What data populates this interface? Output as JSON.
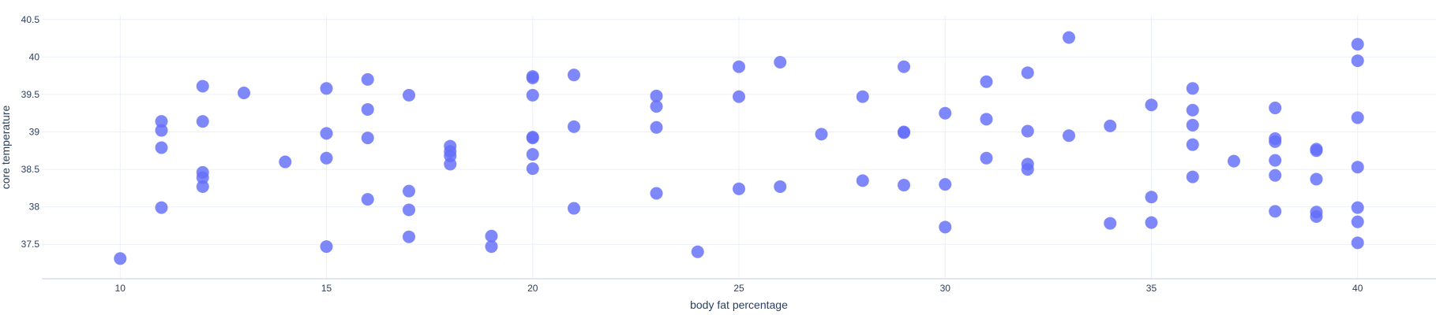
{
  "chart_data": {
    "type": "scatter",
    "title": "",
    "xlabel": "body fat percentage",
    "ylabel": "core temperature",
    "xlim": [
      8.1,
      41.9
    ],
    "ylim": [
      37.04,
      40.55
    ],
    "xticks": [
      10,
      15,
      20,
      25,
      30,
      35,
      40
    ],
    "yticks": [
      37.5,
      38,
      38.5,
      39,
      39.5,
      40,
      40.5
    ],
    "ytick_labels": [
      "37.5",
      "38",
      "38.5",
      "39",
      "39.5",
      "40",
      "40.5"
    ],
    "grid": true,
    "legend": "none",
    "marker_color": "#636efa",
    "points": [
      {
        "x": 10,
        "y": 37.31
      },
      {
        "x": 11,
        "y": 37.99
      },
      {
        "x": 11,
        "y": 38.79
      },
      {
        "x": 11,
        "y": 39.02
      },
      {
        "x": 11,
        "y": 39.14
      },
      {
        "x": 12,
        "y": 38.27
      },
      {
        "x": 12,
        "y": 38.39
      },
      {
        "x": 12,
        "y": 38.46
      },
      {
        "x": 12,
        "y": 39.14
      },
      {
        "x": 12,
        "y": 39.61
      },
      {
        "x": 13,
        "y": 39.52
      },
      {
        "x": 14,
        "y": 38.6
      },
      {
        "x": 15,
        "y": 37.47
      },
      {
        "x": 15,
        "y": 38.65
      },
      {
        "x": 15,
        "y": 38.98
      },
      {
        "x": 15,
        "y": 39.58
      },
      {
        "x": 16,
        "y": 38.1
      },
      {
        "x": 16,
        "y": 38.92
      },
      {
        "x": 16,
        "y": 39.3
      },
      {
        "x": 16,
        "y": 39.7
      },
      {
        "x": 17,
        "y": 37.6
      },
      {
        "x": 17,
        "y": 37.96
      },
      {
        "x": 17,
        "y": 38.21
      },
      {
        "x": 17,
        "y": 39.49
      },
      {
        "x": 18,
        "y": 38.57
      },
      {
        "x": 18,
        "y": 38.68
      },
      {
        "x": 18,
        "y": 38.74
      },
      {
        "x": 18,
        "y": 38.81
      },
      {
        "x": 19,
        "y": 37.47
      },
      {
        "x": 19,
        "y": 37.61
      },
      {
        "x": 20,
        "y": 38.51
      },
      {
        "x": 20,
        "y": 38.7
      },
      {
        "x": 20,
        "y": 38.92
      },
      {
        "x": 20,
        "y": 38.93
      },
      {
        "x": 20,
        "y": 39.49
      },
      {
        "x": 20,
        "y": 39.72
      },
      {
        "x": 20,
        "y": 39.74
      },
      {
        "x": 21,
        "y": 37.98
      },
      {
        "x": 21,
        "y": 39.07
      },
      {
        "x": 21,
        "y": 39.76
      },
      {
        "x": 23,
        "y": 38.18
      },
      {
        "x": 23,
        "y": 39.06
      },
      {
        "x": 23,
        "y": 39.34
      },
      {
        "x": 23,
        "y": 39.48
      },
      {
        "x": 24,
        "y": 37.4
      },
      {
        "x": 25,
        "y": 38.24
      },
      {
        "x": 25,
        "y": 39.47
      },
      {
        "x": 25,
        "y": 39.87
      },
      {
        "x": 26,
        "y": 38.27
      },
      {
        "x": 26,
        "y": 39.93
      },
      {
        "x": 27,
        "y": 38.97
      },
      {
        "x": 28,
        "y": 38.35
      },
      {
        "x": 28,
        "y": 39.47
      },
      {
        "x": 29,
        "y": 38.29
      },
      {
        "x": 29,
        "y": 38.99
      },
      {
        "x": 29,
        "y": 39.0
      },
      {
        "x": 29,
        "y": 39.87
      },
      {
        "x": 30,
        "y": 37.73
      },
      {
        "x": 30,
        "y": 38.3
      },
      {
        "x": 30,
        "y": 39.25
      },
      {
        "x": 31,
        "y": 38.65
      },
      {
        "x": 31,
        "y": 39.17
      },
      {
        "x": 31,
        "y": 39.67
      },
      {
        "x": 32,
        "y": 38.5
      },
      {
        "x": 32,
        "y": 38.57
      },
      {
        "x": 32,
        "y": 39.01
      },
      {
        "x": 32,
        "y": 39.79
      },
      {
        "x": 33,
        "y": 38.95
      },
      {
        "x": 33,
        "y": 40.26
      },
      {
        "x": 34,
        "y": 37.78
      },
      {
        "x": 34,
        "y": 39.08
      },
      {
        "x": 35,
        "y": 37.79
      },
      {
        "x": 35,
        "y": 38.13
      },
      {
        "x": 35,
        "y": 39.36
      },
      {
        "x": 36,
        "y": 38.4
      },
      {
        "x": 36,
        "y": 38.83
      },
      {
        "x": 36,
        "y": 39.09
      },
      {
        "x": 36,
        "y": 39.29
      },
      {
        "x": 36,
        "y": 39.58
      },
      {
        "x": 37,
        "y": 38.61
      },
      {
        "x": 38,
        "y": 37.94
      },
      {
        "x": 38,
        "y": 38.42
      },
      {
        "x": 38,
        "y": 38.62
      },
      {
        "x": 38,
        "y": 38.87
      },
      {
        "x": 38,
        "y": 38.91
      },
      {
        "x": 38,
        "y": 39.32
      },
      {
        "x": 39,
        "y": 37.87
      },
      {
        "x": 39,
        "y": 37.93
      },
      {
        "x": 39,
        "y": 38.37
      },
      {
        "x": 39,
        "y": 38.75
      },
      {
        "x": 39,
        "y": 38.77
      },
      {
        "x": 40,
        "y": 37.52
      },
      {
        "x": 40,
        "y": 37.8
      },
      {
        "x": 40,
        "y": 37.99
      },
      {
        "x": 40,
        "y": 38.53
      },
      {
        "x": 40,
        "y": 39.19
      },
      {
        "x": 40,
        "y": 39.95
      },
      {
        "x": 40,
        "y": 40.17
      }
    ]
  }
}
